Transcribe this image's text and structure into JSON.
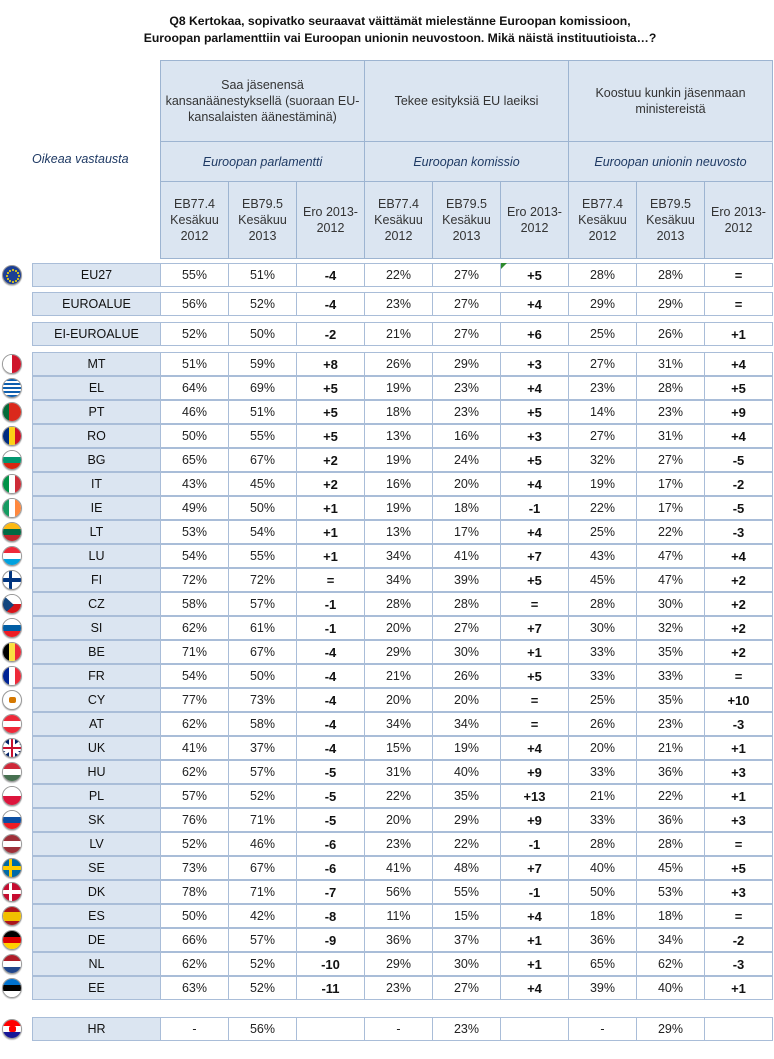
{
  "title_line1": "Q8 Kertokaa, sopivatko seuraavat väittämät mielestänne Euroopan komissioon,",
  "title_line2": "Euroopan parlamenttiin vai Euroopan unionin neuvostoon. Mikä näistä instituutioista…?",
  "oikea": "Oikeaa vastausta",
  "statements": [
    "Saa jäsenensä kansanäänestyksellä (suoraan EU-kansalaisten äänestäminä)",
    "Tekee esityksiä EU laeiksi",
    "Koostuu kunkin jäsenmaan ministereistä"
  ],
  "institutions": [
    "Euroopan parlamentti",
    "Euroopan komissio",
    "Euroopan unionin neuvosto"
  ],
  "subheaders": [
    "EB77.4 Kesäkuu 2012",
    "EB79.5 Kesäkuu 2013",
    "Ero 2013-2012"
  ],
  "groups": [
    {
      "code": "EU27",
      "flag": "eu",
      "v": [
        "55%",
        "51%",
        "-4",
        "22%",
        "27%",
        "+5",
        "28%",
        "28%",
        "="
      ]
    },
    {
      "code": "EUROALUE",
      "flag": "",
      "v": [
        "56%",
        "52%",
        "-4",
        "23%",
        "27%",
        "+4",
        "29%",
        "29%",
        "="
      ]
    },
    {
      "code": "EI-EUROALUE",
      "flag": "",
      "v": [
        "52%",
        "50%",
        "-2",
        "21%",
        "27%",
        "+6",
        "25%",
        "26%",
        "+1"
      ]
    }
  ],
  "countries": [
    {
      "code": "MT",
      "flag": "mt",
      "v": [
        "51%",
        "59%",
        "+8",
        "26%",
        "29%",
        "+3",
        "27%",
        "31%",
        "+4"
      ]
    },
    {
      "code": "EL",
      "flag": "el",
      "v": [
        "64%",
        "69%",
        "+5",
        "19%",
        "23%",
        "+4",
        "23%",
        "28%",
        "+5"
      ]
    },
    {
      "code": "PT",
      "flag": "pt",
      "v": [
        "46%",
        "51%",
        "+5",
        "18%",
        "23%",
        "+5",
        "14%",
        "23%",
        "+9"
      ]
    },
    {
      "code": "RO",
      "flag": "ro",
      "v": [
        "50%",
        "55%",
        "+5",
        "13%",
        "16%",
        "+3",
        "27%",
        "31%",
        "+4"
      ]
    },
    {
      "code": "BG",
      "flag": "bg",
      "v": [
        "65%",
        "67%",
        "+2",
        "19%",
        "24%",
        "+5",
        "32%",
        "27%",
        "-5"
      ]
    },
    {
      "code": "IT",
      "flag": "it",
      "v": [
        "43%",
        "45%",
        "+2",
        "16%",
        "20%",
        "+4",
        "19%",
        "17%",
        "-2"
      ]
    },
    {
      "code": "IE",
      "flag": "ie",
      "v": [
        "49%",
        "50%",
        "+1",
        "19%",
        "18%",
        "-1",
        "22%",
        "17%",
        "-5"
      ]
    },
    {
      "code": "LT",
      "flag": "lt",
      "v": [
        "53%",
        "54%",
        "+1",
        "13%",
        "17%",
        "+4",
        "25%",
        "22%",
        "-3"
      ]
    },
    {
      "code": "LU",
      "flag": "lu",
      "v": [
        "54%",
        "55%",
        "+1",
        "34%",
        "41%",
        "+7",
        "43%",
        "47%",
        "+4"
      ]
    },
    {
      "code": "FI",
      "flag": "fi",
      "v": [
        "72%",
        "72%",
        "=",
        "34%",
        "39%",
        "+5",
        "45%",
        "47%",
        "+2"
      ]
    },
    {
      "code": "CZ",
      "flag": "cz",
      "v": [
        "58%",
        "57%",
        "-1",
        "28%",
        "28%",
        "=",
        "28%",
        "30%",
        "+2"
      ]
    },
    {
      "code": "SI",
      "flag": "si",
      "v": [
        "62%",
        "61%",
        "-1",
        "20%",
        "27%",
        "+7",
        "30%",
        "32%",
        "+2"
      ]
    },
    {
      "code": "BE",
      "flag": "be",
      "v": [
        "71%",
        "67%",
        "-4",
        "29%",
        "30%",
        "+1",
        "33%",
        "35%",
        "+2"
      ]
    },
    {
      "code": "FR",
      "flag": "fr",
      "v": [
        "54%",
        "50%",
        "-4",
        "21%",
        "26%",
        "+5",
        "33%",
        "33%",
        "="
      ]
    },
    {
      "code": "CY",
      "flag": "cy",
      "v": [
        "77%",
        "73%",
        "-4",
        "20%",
        "20%",
        "=",
        "25%",
        "35%",
        "+10"
      ]
    },
    {
      "code": "AT",
      "flag": "at",
      "v": [
        "62%",
        "58%",
        "-4",
        "34%",
        "34%",
        "=",
        "26%",
        "23%",
        "-3"
      ]
    },
    {
      "code": "UK",
      "flag": "uk",
      "v": [
        "41%",
        "37%",
        "-4",
        "15%",
        "19%",
        "+4",
        "20%",
        "21%",
        "+1"
      ]
    },
    {
      "code": "HU",
      "flag": "hu",
      "v": [
        "62%",
        "57%",
        "-5",
        "31%",
        "40%",
        "+9",
        "33%",
        "36%",
        "+3"
      ]
    },
    {
      "code": "PL",
      "flag": "pl",
      "v": [
        "57%",
        "52%",
        "-5",
        "22%",
        "35%",
        "+13",
        "21%",
        "22%",
        "+1"
      ]
    },
    {
      "code": "SK",
      "flag": "sk",
      "v": [
        "76%",
        "71%",
        "-5",
        "20%",
        "29%",
        "+9",
        "33%",
        "36%",
        "+3"
      ]
    },
    {
      "code": "LV",
      "flag": "lv",
      "v": [
        "52%",
        "46%",
        "-6",
        "23%",
        "22%",
        "-1",
        "28%",
        "28%",
        "="
      ]
    },
    {
      "code": "SE",
      "flag": "se",
      "v": [
        "73%",
        "67%",
        "-6",
        "41%",
        "48%",
        "+7",
        "40%",
        "45%",
        "+5"
      ]
    },
    {
      "code": "DK",
      "flag": "dk",
      "v": [
        "78%",
        "71%",
        "-7",
        "56%",
        "55%",
        "-1",
        "50%",
        "53%",
        "+3"
      ]
    },
    {
      "code": "ES",
      "flag": "es",
      "v": [
        "50%",
        "42%",
        "-8",
        "11%",
        "15%",
        "+4",
        "18%",
        "18%",
        "="
      ]
    },
    {
      "code": "DE",
      "flag": "de",
      "v": [
        "66%",
        "57%",
        "-9",
        "36%",
        "37%",
        "+1",
        "36%",
        "34%",
        "-2"
      ]
    },
    {
      "code": "NL",
      "flag": "nl",
      "v": [
        "62%",
        "52%",
        "-10",
        "29%",
        "30%",
        "+1",
        "65%",
        "62%",
        "-3"
      ]
    },
    {
      "code": "EE",
      "flag": "ee",
      "v": [
        "63%",
        "52%",
        "-11",
        "23%",
        "27%",
        "+4",
        "39%",
        "40%",
        "+1"
      ]
    }
  ],
  "extra": {
    "code": "HR",
    "flag": "hr",
    "v": [
      "-",
      "56%",
      "",
      "-",
      "23%",
      "",
      "-",
      "29%",
      ""
    ]
  }
}
